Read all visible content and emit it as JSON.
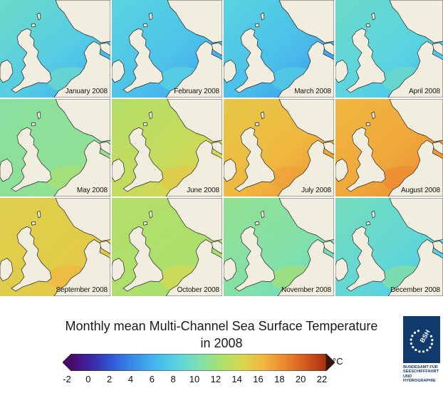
{
  "title_line1": "Monthly mean Multi-Channel Sea Surface Temperature",
  "title_line2": "in 2008",
  "unit": "°C",
  "colorbar": {
    "ticks": [
      "-2",
      "0",
      "2",
      "4",
      "6",
      "8",
      "10",
      "12",
      "14",
      "16",
      "18",
      "20",
      "22"
    ],
    "range": [
      -2,
      22
    ],
    "colors": [
      "#4b0a6e",
      "#3a2aa8",
      "#2f5fd8",
      "#3a8fe8",
      "#45b8ee",
      "#5ad4e0",
      "#7ee0b0",
      "#a8e070",
      "#d8d850",
      "#f0b840",
      "#ec8a30",
      "#d55a20",
      "#a83010"
    ]
  },
  "panels": [
    {
      "label": "January 2008",
      "sst_west": 9,
      "sst_east": 6,
      "sst_south": 9
    },
    {
      "label": "February 2008",
      "sst_west": 8,
      "sst_east": 5.5,
      "sst_south": 8
    },
    {
      "label": "March 2008",
      "sst_west": 8,
      "sst_east": 5,
      "sst_south": 7.5
    },
    {
      "label": "April 2008",
      "sst_west": 9,
      "sst_east": 7,
      "sst_south": 9
    },
    {
      "label": "May 2008",
      "sst_west": 10.5,
      "sst_east": 11,
      "sst_south": 12
    },
    {
      "label": "June 2008",
      "sst_west": 12.5,
      "sst_east": 14,
      "sst_south": 15
    },
    {
      "label": "July 2008",
      "sst_west": 15,
      "sst_east": 17,
      "sst_south": 17
    },
    {
      "label": "August 2008",
      "sst_west": 16,
      "sst_east": 17.5,
      "sst_south": 18
    },
    {
      "label": "September 2008",
      "sst_west": 14.5,
      "sst_east": 15,
      "sst_south": 16
    },
    {
      "label": "October 2008",
      "sst_west": 12.5,
      "sst_east": 12,
      "sst_south": 14
    },
    {
      "label": "November 2008",
      "sst_west": 11,
      "sst_east": 9.5,
      "sst_south": 12
    },
    {
      "label": "December 2008",
      "sst_west": 9.5,
      "sst_east": 7.5,
      "sst_south": 10.5
    }
  ],
  "logo": {
    "mark": "BSH",
    "lines": [
      "BUNDESAMT FÜR",
      "SEESCHIFFFAHRT",
      "UND",
      "HYDROGRAPHIE"
    ]
  }
}
